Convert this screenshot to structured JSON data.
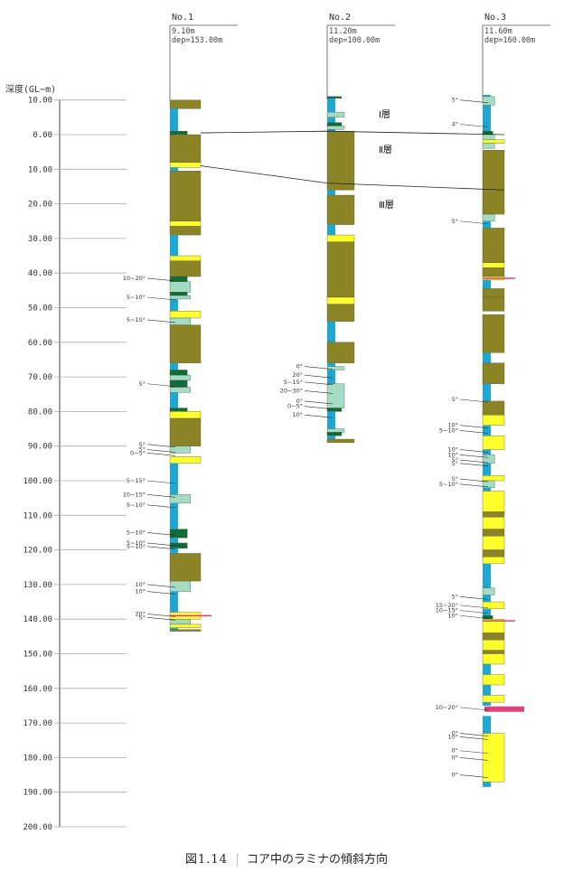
{
  "axis_label": "深度(GL−m)",
  "depth_ticks": [
    "10.00",
    "0.00",
    "10.00",
    "20.00",
    "30.00",
    "40.00",
    "50.00",
    "60.00",
    "70.00",
    "80.00",
    "90.00",
    "100.00",
    "110.00",
    "120.00",
    "130.00",
    "140.00",
    "150.00",
    "160.00",
    "170.00",
    "180.00",
    "190.00",
    "200.00"
  ],
  "layers": [
    "Ⅰ層",
    "Ⅱ層",
    "Ⅲ層"
  ],
  "caption": {
    "number": "図1.14",
    "title": "コア中のラミナの傾斜方向"
  },
  "colors": {
    "silt": "#8b8427",
    "sand": "#ffff2e",
    "water": "#1fa6d1",
    "fine": "#a3dcc3",
    "dark": "#0f6b3a",
    "accent": "#e0407c"
  },
  "bores": [
    {
      "name": "No.1",
      "elev": "9.10m",
      "dep": "dep=153.00m",
      "labels": [
        {
          "t": "10~20°",
          "d": 41.5
        },
        {
          "t": "5~10°",
          "d": 47
        },
        {
          "t": "5~15°",
          "d": 53.5
        },
        {
          "t": "5°",
          "d": 72
        },
        {
          "t": "5°",
          "d": 89.5
        },
        {
          "t": "5°",
          "d": 91
        },
        {
          "t": "0~5°",
          "d": 92
        },
        {
          "t": "5~15°",
          "d": 100
        },
        {
          "t": "10~15°",
          "d": 104
        },
        {
          "t": "5~10°",
          "d": 107
        },
        {
          "t": "5~10°",
          "d": 115
        },
        {
          "t": "5~10°",
          "d": 118
        },
        {
          "t": "5~10°",
          "d": 119
        },
        {
          "t": "10°",
          "d": 130
        },
        {
          "t": "10°",
          "d": 132
        },
        {
          "t": "20°",
          "d": 138.5
        },
        {
          "t": "5°",
          "d": 139.5
        }
      ],
      "bands": [
        {
          "c": "silt",
          "t": -10,
          "b": -7.5
        },
        {
          "c": "water",
          "t": -7.5,
          "b": 0
        },
        {
          "c": "dark",
          "t": -1,
          "b": 0
        },
        {
          "c": "silt",
          "t": 0,
          "b": 8
        },
        {
          "c": "sand",
          "t": 8,
          "b": 9.5
        },
        {
          "c": "water",
          "t": 9.5,
          "b": 10.5
        },
        {
          "c": "silt",
          "t": 10.5,
          "b": 25
        },
        {
          "c": "sand",
          "t": 25,
          "b": 26.5
        },
        {
          "c": "silt",
          "t": 26.5,
          "b": 29
        },
        {
          "c": "water",
          "t": 29,
          "b": 35
        },
        {
          "c": "sand",
          "t": 35,
          "b": 36.5
        },
        {
          "c": "silt",
          "t": 36.5,
          "b": 41
        },
        {
          "c": "dark",
          "t": 41,
          "b": 42.5
        },
        {
          "c": "fine",
          "t": 42.5,
          "b": 45.5
        },
        {
          "c": "dark",
          "t": 45.5,
          "b": 46.5
        },
        {
          "c": "fine",
          "t": 46.5,
          "b": 47.5
        },
        {
          "c": "water",
          "t": 47.5,
          "b": 51
        },
        {
          "c": "sand",
          "t": 51,
          "b": 53
        },
        {
          "c": "fine",
          "t": 53,
          "b": 55
        },
        {
          "c": "silt",
          "t": 55,
          "b": 66
        },
        {
          "c": "water",
          "t": 66,
          "b": 68
        },
        {
          "c": "dark",
          "t": 68,
          "b": 69.5
        },
        {
          "c": "fine",
          "t": 69.5,
          "b": 71
        },
        {
          "c": "dark",
          "t": 71,
          "b": 73
        },
        {
          "c": "fine",
          "t": 73,
          "b": 74.5
        },
        {
          "c": "water",
          "t": 74.5,
          "b": 79
        },
        {
          "c": "dark",
          "t": 79,
          "b": 80
        },
        {
          "c": "sand",
          "t": 80,
          "b": 82
        },
        {
          "c": "silt",
          "t": 82,
          "b": 90
        },
        {
          "c": "fine",
          "t": 90,
          "b": 92
        },
        {
          "c": "sand",
          "t": 93,
          "b": 95
        },
        {
          "c": "water",
          "t": 95,
          "b": 104
        },
        {
          "c": "fine",
          "t": 104,
          "b": 106.5
        },
        {
          "c": "water",
          "t": 106.5,
          "b": 114
        },
        {
          "c": "dark",
          "t": 114,
          "b": 116.5
        },
        {
          "c": "water",
          "t": 116.5,
          "b": 118
        },
        {
          "c": "dark",
          "t": 118,
          "b": 119.5
        },
        {
          "c": "water",
          "t": 119.5,
          "b": 121
        },
        {
          "c": "silt",
          "t": 121,
          "b": 129
        },
        {
          "c": "fine",
          "t": 129,
          "b": 132
        },
        {
          "c": "water",
          "t": 132,
          "b": 138
        },
        {
          "c": "sand",
          "t": 138,
          "b": 140
        },
        {
          "c": "fine",
          "t": 140,
          "b": 141.5
        },
        {
          "c": "sand",
          "t": 141.5,
          "b": 142.5
        },
        {
          "c": "water",
          "t": 142.5,
          "b": 143
        },
        {
          "c": "silt",
          "t": 143,
          "b": 143.5
        }
      ],
      "markers": [
        {
          "d": 139
        }
      ]
    },
    {
      "name": "No.2",
      "elev": "11.20m",
      "dep": "dep=100.00m",
      "labels": [
        {
          "t": "0°",
          "d": 67
        },
        {
          "t": "20°",
          "d": 69.5
        },
        {
          "t": "5~15°",
          "d": 71.5
        },
        {
          "t": "20~30°",
          "d": 74
        },
        {
          "t": "0°",
          "d": 77
        },
        {
          "t": "0~5°",
          "d": 78.5
        },
        {
          "t": "10°",
          "d": 81
        }
      ],
      "bands": [
        {
          "c": "water",
          "t": -11,
          "b": -1
        },
        {
          "c": "dark",
          "t": -11,
          "b": -10.5
        },
        {
          "c": "fine",
          "t": -6.5,
          "b": -5
        },
        {
          "c": "dark",
          "t": -3.5,
          "b": -2.5
        },
        {
          "c": "fine",
          "t": -2.5,
          "b": -1.5
        },
        {
          "c": "silt",
          "t": -1,
          "b": 16
        },
        {
          "c": "water",
          "t": 16,
          "b": 17.5
        },
        {
          "c": "silt",
          "t": 17.5,
          "b": 26
        },
        {
          "c": "water",
          "t": 26,
          "b": 29
        },
        {
          "c": "sand",
          "t": 29,
          "b": 31
        },
        {
          "c": "silt",
          "t": 31,
          "b": 47
        },
        {
          "c": "sand",
          "t": 47,
          "b": 49
        },
        {
          "c": "silt",
          "t": 49,
          "b": 54
        },
        {
          "c": "water",
          "t": 54,
          "b": 60
        },
        {
          "c": "silt",
          "t": 60,
          "b": 66
        },
        {
          "c": "water",
          "t": 66,
          "b": 67
        },
        {
          "c": "fine",
          "t": 67,
          "b": 68
        },
        {
          "c": "water",
          "t": 68,
          "b": 72
        },
        {
          "c": "fine",
          "t": 72,
          "b": 79
        },
        {
          "c": "dark",
          "t": 79,
          "b": 80
        },
        {
          "c": "water",
          "t": 80,
          "b": 85
        },
        {
          "c": "fine",
          "t": 85,
          "b": 86
        },
        {
          "c": "dark",
          "t": 86,
          "b": 87
        },
        {
          "c": "water",
          "t": 87,
          "b": 88
        },
        {
          "c": "silt",
          "t": 88,
          "b": 89
        }
      ],
      "markers": []
    },
    {
      "name": "No.3",
      "elev": "11.60m",
      "dep": "dep=160.00m",
      "labels": [
        {
          "t": "5°",
          "d": -10
        },
        {
          "t": "4°",
          "d": -3
        },
        {
          "t": "5°",
          "d": 25
        },
        {
          "t": "5°",
          "d": 76.5
        },
        {
          "t": "10°",
          "d": 84
        },
        {
          "t": "5~10°",
          "d": 85.5
        },
        {
          "t": "10°",
          "d": 91
        },
        {
          "t": "10°",
          "d": 92.5
        },
        {
          "t": "5°",
          "d": 94
        },
        {
          "t": "5°",
          "d": 95
        },
        {
          "t": "5°",
          "d": 99.5
        },
        {
          "t": "5~10°",
          "d": 101
        },
        {
          "t": "5°",
          "d": 133.5
        },
        {
          "t": "15~20°",
          "d": 136
        },
        {
          "t": "10~15°",
          "d": 137.5
        },
        {
          "t": "10°",
          "d": 139
        },
        {
          "t": "10~20°",
          "d": 165.5
        },
        {
          "t": "0°",
          "d": 173
        },
        {
          "t": "10°",
          "d": 174
        },
        {
          "t": "0°",
          "d": 178
        },
        {
          "t": "0°",
          "d": 180
        },
        {
          "t": "0°",
          "d": 185
        }
      ],
      "bands": [
        {
          "c": "water",
          "t": -11.5,
          "b": 4
        },
        {
          "c": "fine",
          "t": -11,
          "b": -8.5
        },
        {
          "c": "dark",
          "t": -1,
          "b": 0
        },
        {
          "c": "fine",
          "t": 0,
          "b": 1.5
        },
        {
          "c": "sand",
          "t": 1.5,
          "b": 2.5
        },
        {
          "c": "fine",
          "t": 2.5,
          "b": 4
        },
        {
          "c": "silt",
          "t": 4.5,
          "b": 23
        },
        {
          "c": "fine",
          "t": 23,
          "b": 25
        },
        {
          "c": "water",
          "t": 25,
          "b": 27
        },
        {
          "c": "silt",
          "t": 27,
          "b": 37
        },
        {
          "c": "sand",
          "t": 37,
          "b": 38.5
        },
        {
          "c": "silt",
          "t": 38.5,
          "b": 41
        },
        {
          "c": "sand",
          "t": 41,
          "b": 42
        },
        {
          "c": "water",
          "t": 42,
          "b": 44.5
        },
        {
          "c": "silt",
          "t": 44.5,
          "b": 47
        },
        {
          "c": "silt",
          "t": 47,
          "b": 51
        },
        {
          "c": "silt",
          "t": 52,
          "b": 63
        },
        {
          "c": "water",
          "t": 63,
          "b": 66
        },
        {
          "c": "silt",
          "t": 66,
          "b": 72
        },
        {
          "c": "water",
          "t": 72,
          "b": 77
        },
        {
          "c": "silt",
          "t": 77,
          "b": 81
        },
        {
          "c": "sand",
          "t": 81,
          "b": 84
        },
        {
          "c": "water",
          "t": 84,
          "b": 87
        },
        {
          "c": "sand",
          "t": 87,
          "b": 91
        },
        {
          "c": "water",
          "t": 91,
          "b": 92.5
        },
        {
          "c": "fine",
          "t": 92.5,
          "b": 95
        },
        {
          "c": "water",
          "t": 95,
          "b": 98.5
        },
        {
          "c": "sand",
          "t": 98.5,
          "b": 100
        },
        {
          "c": "fine",
          "t": 100,
          "b": 102
        },
        {
          "c": "water",
          "t": 102,
          "b": 103
        },
        {
          "c": "sand",
          "t": 103,
          "b": 109
        },
        {
          "c": "silt",
          "t": 109,
          "b": 110.5
        },
        {
          "c": "sand",
          "t": 110.5,
          "b": 114
        },
        {
          "c": "silt",
          "t": 114,
          "b": 116
        },
        {
          "c": "sand",
          "t": 116,
          "b": 120
        },
        {
          "c": "silt",
          "t": 120,
          "b": 122
        },
        {
          "c": "sand",
          "t": 122,
          "b": 124
        },
        {
          "c": "water",
          "t": 124,
          "b": 131
        },
        {
          "c": "fine",
          "t": 131,
          "b": 133
        },
        {
          "c": "water",
          "t": 133,
          "b": 135
        },
        {
          "c": "sand",
          "t": 135,
          "b": 137
        },
        {
          "c": "water",
          "t": 137,
          "b": 139
        },
        {
          "c": "dark",
          "t": 139,
          "b": 140
        },
        {
          "c": "sand",
          "t": 140,
          "b": 144
        },
        {
          "c": "silt",
          "t": 144,
          "b": 146
        },
        {
          "c": "sand",
          "t": 146,
          "b": 149
        },
        {
          "c": "silt",
          "t": 149,
          "b": 150
        },
        {
          "c": "sand",
          "t": 150,
          "b": 153
        },
        {
          "c": "water",
          "t": 153,
          "b": 156
        },
        {
          "c": "sand",
          "t": 156,
          "b": 159
        },
        {
          "c": "water",
          "t": 159,
          "b": 162
        },
        {
          "c": "sand",
          "t": 162,
          "b": 164
        },
        {
          "c": "water",
          "t": 164,
          "b": 165
        },
        {
          "c": "water",
          "t": 168,
          "b": 173
        },
        {
          "c": "sand",
          "t": 173,
          "b": 187
        },
        {
          "c": "water",
          "t": 187,
          "b": 188.5
        }
      ],
      "markers": [
        {
          "d": 41.5
        },
        {
          "d": 140.5
        },
        {
          "d": 166,
          "wide": true
        }
      ]
    }
  ],
  "correlation_lines": [
    {
      "d1": -0.5,
      "d2": -1.0,
      "d3": 0.0
    },
    {
      "d1": 9.0,
      "d2": 14.0,
      "d3": 16.0
    }
  ]
}
